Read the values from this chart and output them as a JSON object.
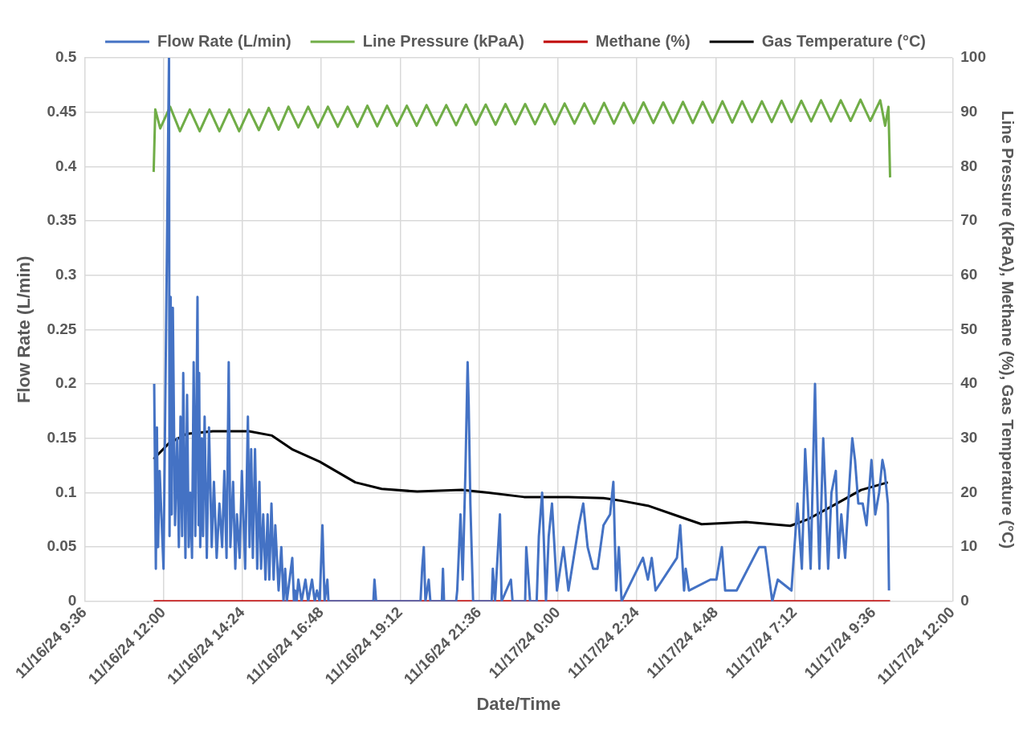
{
  "chart_data": {
    "type": "line",
    "xlabel": "Date/Time",
    "ylabel": "Flow Rate (L/min)",
    "y2label": "Line Pressure (kPaA), Methane (%), Gas Temperature (°C)",
    "xlim": [
      "--11-16T09:36",
      "--11-17T12:00"
    ],
    "xticks": [
      {
        "value": "--11-16T09:36",
        "label": "11/16/24 9:36"
      },
      {
        "value": "--11-16T12:00",
        "label": "11/16/24 12:00"
      },
      {
        "value": "--11-16T14:24",
        "label": "11/16/24 14:24"
      },
      {
        "value": "--11-16T16:48",
        "label": "11/16/24 16:48"
      },
      {
        "value": "--11-16T19:12",
        "label": "11/16/24 19:12"
      },
      {
        "value": "--11-16T21:36",
        "label": "11/16/24 21:36"
      },
      {
        "value": "--11-17T00:00",
        "label": "11/17/24 0:00"
      },
      {
        "value": "--11-17T02:24",
        "label": "11/17/24 2:24"
      },
      {
        "value": "--11-17T04:48",
        "label": "11/17/24 4:48"
      },
      {
        "value": "--11-17T07:12",
        "label": "11/17/24 7:12"
      },
      {
        "value": "--11-17T09:36",
        "label": "11/17/24 9:36"
      },
      {
        "value": "--11-17T12:00",
        "label": "11/17/24 12:00"
      }
    ],
    "ylim": [
      0,
      0.5
    ],
    "yticks": [
      0,
      0.05,
      0.1,
      0.15,
      0.2,
      0.25,
      0.3,
      0.35,
      0.4,
      0.45,
      0.5
    ],
    "y2lim": [
      0,
      100
    ],
    "y2ticks": [
      0,
      10,
      20,
      30,
      40,
      50,
      60,
      70,
      80,
      90,
      100
    ],
    "grid": true,
    "legend": "top",
    "marker": "none",
    "line_style": "solid",
    "series": [
      {
        "name": "Flow Rate (L/min)",
        "color": "#4472c4",
        "x": [
          "--11-16T11:43",
          "--11-16T11:46",
          "--11-16T11:48",
          "--11-16T11:50",
          "--11-16T11:53",
          "--11-16T12:00",
          "--11-16T12:10",
          "--11-16T12:11",
          "--11-16T12:13",
          "--11-16T12:15",
          "--11-16T12:17",
          "--11-16T12:21",
          "--11-16T12:25",
          "--11-16T12:28",
          "--11-16T12:31",
          "--11-16T12:34",
          "--11-16T12:36",
          "--11-16T12:40",
          "--11-16T12:43",
          "--11-16T12:46",
          "--11-16T12:49",
          "--11-16T12:52",
          "--11-16T12:55",
          "--11-16T12:58",
          "--11-16T13:02",
          "--11-16T13:04",
          "--11-16T13:05",
          "--11-16T13:07",
          "--11-16T13:10",
          "--11-16T13:12",
          "--11-16T13:15",
          "--11-16T13:19",
          "--11-16T13:23",
          "--11-16T13:28",
          "--11-16T13:32",
          "--11-16T13:37",
          "--11-16T13:42",
          "--11-16T13:47",
          "--11-16T13:51",
          "--11-16T13:55",
          "--11-16T13:59",
          "--11-16T14:02",
          "--11-16T14:07",
          "--11-16T14:11",
          "--11-16T14:14",
          "--11-16T14:19",
          "--11-16T14:23",
          "--11-16T14:29",
          "--11-16T14:34",
          "--11-16T14:37",
          "--11-16T14:40",
          "--11-16T14:43",
          "--11-16T14:47",
          "--11-16T14:51",
          "--11-16T14:55",
          "--11-16T14:58",
          "--11-16T15:02",
          "--11-16T15:06",
          "--11-16T15:10",
          "--11-16T15:13",
          "--11-16T15:17",
          "--11-16T15:21",
          "--11-16T15:24",
          "--11-16T15:30",
          "--11-16T15:35",
          "--11-16T15:39",
          "--11-16T15:42",
          "--11-16T15:45",
          "--11-16T15:55",
          "--11-16T15:58",
          "--11-16T16:00",
          "--11-16T16:03",
          "--11-16T16:06",
          "--11-16T16:12",
          "--11-16T16:19",
          "--11-16T16:24",
          "--11-16T16:31",
          "--11-16T16:36",
          "--11-16T16:40",
          "--11-16T16:45",
          "--11-16T16:50",
          "--11-16T16:54",
          "--11-16T16:59",
          "--11-16T17:01",
          "--11-16T18:23",
          "--11-16T18:25",
          "--11-16T18:28",
          "--11-16T19:49",
          "--11-16T19:52",
          "--11-16T19:55",
          "--11-16T19:58",
          "--11-16T20:04",
          "--11-16T20:07",
          "--11-16T20:28",
          "--11-16T20:30",
          "--11-16T20:32",
          "--11-16T20:54",
          "--11-16T20:56",
          "--11-16T21:02",
          "--11-16T21:06",
          "--11-16T21:11",
          "--11-16T21:15",
          "--11-16T21:17",
          "--11-16T21:20",
          "--11-16T21:25",
          "--11-16T21:59",
          "--11-16T22:01",
          "--11-16T22:05",
          "--11-16T22:14",
          "--11-16T22:17",
          "--11-16T22:34",
          "--11-16T22:37",
          "--11-16T23:00",
          "--11-16T23:02",
          "--11-16T23:09",
          "--11-16T23:21",
          "--11-16T23:25",
          "--11-16T23:31",
          "--11-16T23:38",
          "--11-16T23:43",
          "--11-16T23:49",
          "--11-16T23:58",
          "--11-17T00:10",
          "--11-17T00:19",
          "--11-17T00:38",
          "--11-17T00:46",
          "--11-17T00:54",
          "--11-17T01:04",
          "--11-17T01:12",
          "--11-17T01:23",
          "--11-17T01:35",
          "--11-17T01:41",
          "--11-17T01:46",
          "--11-17T01:51",
          "--11-17T01:56",
          "--11-17T02:35",
          "--11-17T02:44",
          "--11-17T02:51",
          "--11-17T02:58",
          "--11-17T03:37",
          "--11-17T03:43",
          "--11-17T03:50",
          "--11-17T03:53",
          "--11-17T03:59",
          "--11-17T04:38",
          "--11-17T04:49",
          "--11-17T04:59",
          "--11-17T05:05",
          "--11-17T05:26",
          "--11-17T06:07",
          "--11-17T06:18",
          "--11-17T06:31",
          "--11-17T06:41",
          "--11-17T07:06",
          "--11-17T07:17",
          "--11-17T07:25",
          "--11-17T07:31",
          "--11-17T07:36",
          "--11-17T07:41",
          "--11-17T07:49",
          "--11-17T07:52",
          "--11-17T07:57",
          "--11-17T08:04",
          "--11-17T08:08",
          "--11-17T08:13",
          "--11-17T08:19",
          "--11-17T08:27",
          "--11-17T08:32",
          "--11-17T08:37",
          "--11-17T08:44",
          "--11-17T08:52",
          "--11-17T08:57",
          "--11-17T09:02",
          "--11-17T09:08",
          "--11-17T09:16",
          "--11-17T09:23",
          "--11-17T09:32",
          "--11-17T09:39",
          "--11-17T09:46",
          "--11-17T09:52",
          "--11-17T09:56",
          "--11-17T10:02",
          "--11-17T10:04"
        ],
        "values": [
          0.2,
          0.03,
          0.16,
          0.05,
          0.12,
          0.03,
          0.5,
          0.06,
          0.28,
          0.08,
          0.27,
          0.07,
          0.15,
          0.05,
          0.17,
          0.06,
          0.21,
          0.04,
          0.19,
          0.05,
          0.1,
          0.04,
          0.22,
          0.06,
          0.28,
          0.07,
          0.21,
          0.05,
          0.15,
          0.06,
          0.17,
          0.04,
          0.16,
          0.05,
          0.11,
          0.04,
          0.09,
          0.05,
          0.12,
          0.04,
          0.22,
          0.05,
          0.11,
          0.03,
          0.08,
          0.04,
          0.12,
          0.03,
          0.17,
          0.05,
          0.14,
          0.04,
          0.14,
          0.03,
          0.11,
          0.03,
          0.08,
          0.02,
          0.08,
          0.02,
          0.09,
          0.02,
          0.07,
          0.01,
          0.05,
          0,
          0.03,
          0,
          0.04,
          0,
          0.01,
          0,
          0.02,
          0,
          0.02,
          0,
          0.02,
          0,
          0.01,
          0,
          0.07,
          0,
          0.02,
          0,
          0,
          0.02,
          0,
          0,
          0.03,
          0.05,
          0,
          0.02,
          0,
          0,
          0.03,
          0,
          0,
          0.01,
          0.08,
          0.02,
          0.12,
          0.22,
          0.18,
          0.09,
          0,
          0,
          0.03,
          0,
          0.08,
          0,
          0.02,
          0,
          0,
          0.05,
          0,
          0,
          0.06,
          0.1,
          0,
          0.06,
          0.09,
          0.01,
          0.05,
          0.01,
          0.07,
          0.09,
          0.05,
          0.03,
          0.03,
          0.07,
          0.08,
          0.11,
          0.01,
          0.05,
          0,
          0.04,
          0.02,
          0.04,
          0.01,
          0.04,
          0.07,
          0.01,
          0.03,
          0.01,
          0.02,
          0.02,
          0.05,
          0.01,
          0.01,
          0.05,
          0.05,
          0,
          0.02,
          0.01,
          0.09,
          0.03,
          0.14,
          0.09,
          0.03,
          0.2,
          0.12,
          0.03,
          0.15,
          0.1,
          0.03,
          0.1,
          0.12,
          0.04,
          0.08,
          0.04,
          0.11,
          0.15,
          0.13,
          0.09,
          0.09,
          0.07,
          0.13,
          0.08,
          0.1,
          0.13,
          0.12,
          0.09,
          0.01
        ]
      },
      {
        "name": "Line Pressure (kPaA)",
        "color": "#70ad47",
        "axis": "y2",
        "x": [
          "--11-16T11:42",
          "--11-16T11:45",
          "--11-16T11:54",
          "--11-16T12:12",
          "--11-16T12:30",
          "--11-16T12:48",
          "--11-16T13:06",
          "--11-16T13:24",
          "--11-16T13:42",
          "--11-16T14:00",
          "--11-16T14:18",
          "--11-16T14:36",
          "--11-16T14:54",
          "--11-16T15:12",
          "--11-16T15:30",
          "--11-16T15:48",
          "--11-16T16:06",
          "--11-16T16:24",
          "--11-16T16:42",
          "--11-16T17:00",
          "--11-16T17:18",
          "--11-16T17:36",
          "--11-16T17:54",
          "--11-16T18:12",
          "--11-16T18:30",
          "--11-16T18:48",
          "--11-16T19:06",
          "--11-16T19:24",
          "--11-16T19:42",
          "--11-16T20:00",
          "--11-16T20:18",
          "--11-16T20:36",
          "--11-16T20:54",
          "--11-16T21:12",
          "--11-16T21:30",
          "--11-16T21:48",
          "--11-16T22:06",
          "--11-16T22:24",
          "--11-16T22:42",
          "--11-16T23:00",
          "--11-16T23:18",
          "--11-16T23:36",
          "--11-16T23:54",
          "--11-17T00:12",
          "--11-17T00:30",
          "--11-17T00:48",
          "--11-17T01:06",
          "--11-17T01:24",
          "--11-17T01:42",
          "--11-17T02:00",
          "--11-17T02:18",
          "--11-17T02:36",
          "--11-17T02:54",
          "--11-17T03:12",
          "--11-17T03:30",
          "--11-17T03:48",
          "--11-17T04:06",
          "--11-17T04:24",
          "--11-17T04:42",
          "--11-17T05:00",
          "--11-17T05:18",
          "--11-17T05:36",
          "--11-17T05:54",
          "--11-17T06:12",
          "--11-17T06:30",
          "--11-17T06:48",
          "--11-17T07:06",
          "--11-17T07:24",
          "--11-17T07:42",
          "--11-17T08:00",
          "--11-17T08:18",
          "--11-17T08:36",
          "--11-17T08:54",
          "--11-17T09:12",
          "--11-17T09:30",
          "--11-17T09:48",
          "--11-17T09:57",
          "--11-17T10:03",
          "--11-17T10:06"
        ],
        "values": [
          79,
          90.5,
          87,
          91,
          86.5,
          90.5,
          86.5,
          90.5,
          86.5,
          90.5,
          86.5,
          90.5,
          86.7,
          90.8,
          86.8,
          91,
          87.2,
          91,
          87.2,
          91,
          87.3,
          91,
          87.3,
          91.2,
          87.4,
          91.2,
          87.5,
          91.2,
          87.5,
          91.3,
          87.6,
          91.3,
          87.6,
          91.4,
          87.7,
          91.4,
          87.7,
          91.5,
          87.8,
          91.5,
          87.8,
          91.5,
          87.8,
          91.6,
          87.9,
          91.6,
          87.9,
          91.7,
          87.9,
          91.7,
          88,
          91.8,
          88,
          91.8,
          88,
          91.9,
          88,
          91.9,
          88.1,
          92,
          88.1,
          92,
          88.2,
          92,
          88.2,
          92.1,
          88.2,
          92.1,
          88.3,
          92.2,
          88.3,
          92.2,
          88.4,
          92.3,
          88.4,
          92.2,
          87.5,
          91,
          78
        ]
      },
      {
        "name": "Methane (%)",
        "color": "#c00000",
        "axis": "y2",
        "x": [
          "--11-16T11:42",
          "--11-17T10:06"
        ],
        "values": [
          0,
          0
        ]
      },
      {
        "name": "Gas Temperature (°C)",
        "color": "#000000",
        "axis": "y2",
        "x": [
          "--11-16T11:42",
          "--11-16T12:10",
          "--11-16T12:42",
          "--11-16T13:30",
          "--11-16T14:36",
          "--11-16T15:18",
          "--11-16T15:56",
          "--11-16T16:45",
          "--11-16T17:50",
          "--11-16T18:38",
          "--11-16T19:43",
          "--11-16T21:04",
          "--11-16T21:53",
          "--11-16T22:58",
          "--11-17T00:19",
          "--11-17T01:23",
          "--11-17T01:56",
          "--11-17T02:44",
          "--11-17T03:33",
          "--11-17T04:22",
          "--11-17T05:43",
          "--11-17T07:04",
          "--11-17T07:36",
          "--11-17T08:25",
          "--11-17T09:13",
          "--11-17T10:02"
        ],
        "values": [
          26.2,
          29.1,
          30.8,
          31.3,
          31.3,
          30.5,
          27.9,
          25.7,
          21.9,
          20.7,
          20.2,
          20.5,
          20,
          19.2,
          19.2,
          19,
          18.5,
          17.6,
          15.9,
          14.2,
          14.6,
          13.9,
          15.1,
          17.8,
          20.5,
          21.9
        ]
      }
    ]
  }
}
